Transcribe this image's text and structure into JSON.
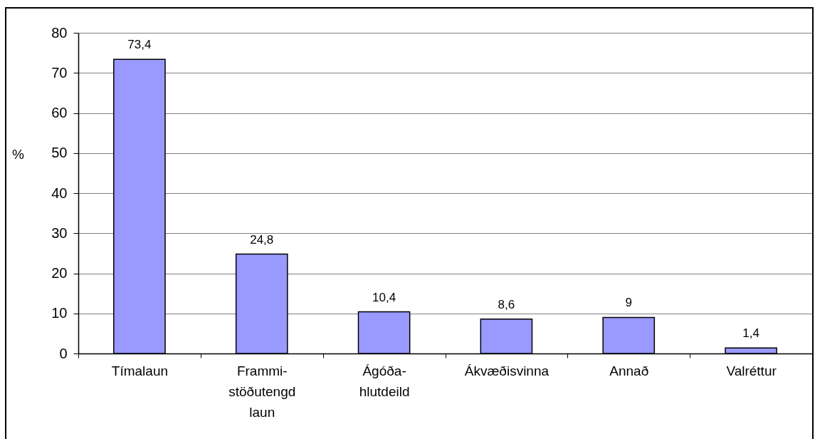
{
  "chart_data": {
    "type": "bar",
    "ylabel": "%",
    "categories": [
      "Tímalaun",
      "Frammi-\nstöðutengd\nlaun",
      "Ágóða-\nhlutdeild",
      "Ákvæðisvinna",
      "Annað",
      "Valréttur"
    ],
    "values": [
      73.4,
      24.8,
      10.4,
      8.6,
      9,
      1.4
    ],
    "value_labels": [
      "73,4",
      "24,8",
      "10,4",
      "8,6",
      "9",
      "1,4"
    ],
    "color": "#9999ff",
    "ylim": [
      0,
      80
    ],
    "yticks": [
      0,
      10,
      20,
      30,
      40,
      50,
      60,
      70,
      80
    ],
    "grid": "y"
  }
}
